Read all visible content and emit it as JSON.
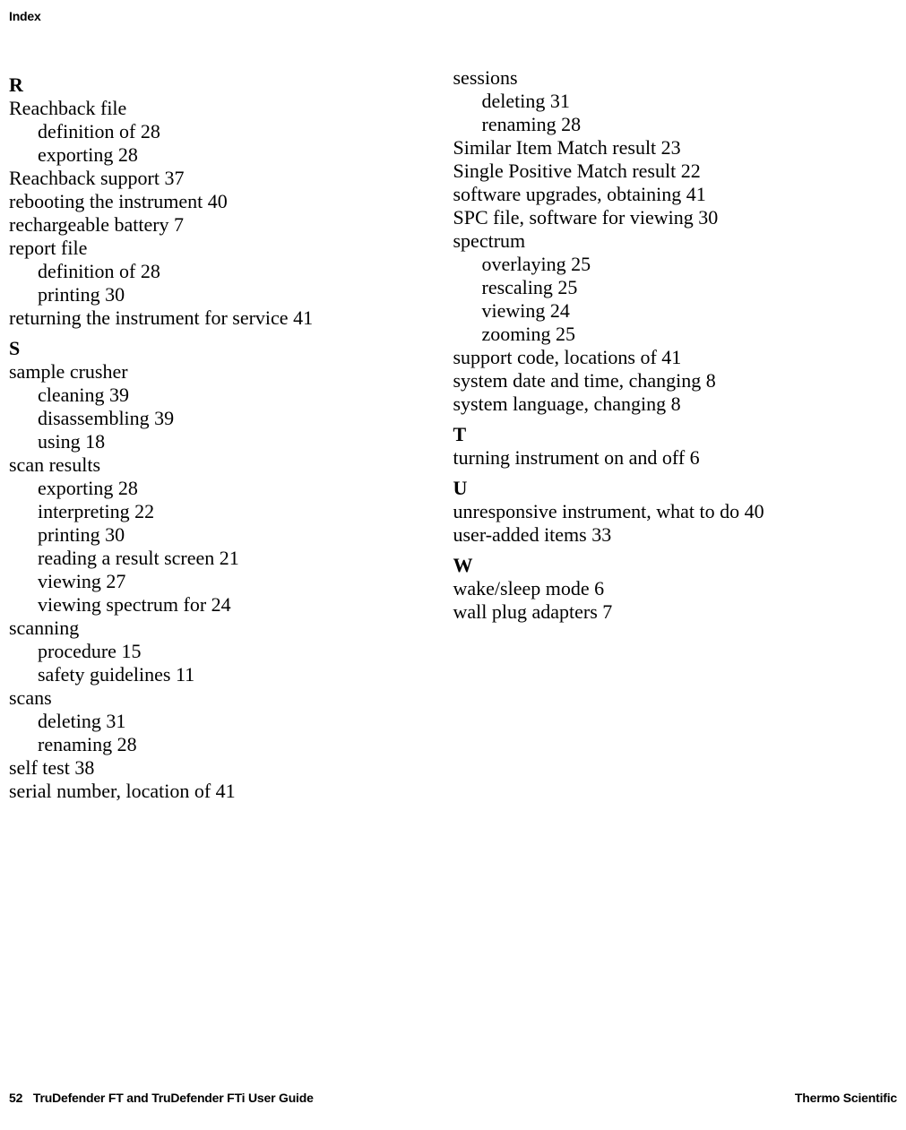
{
  "header": "Index",
  "footer": {
    "page_num": "52",
    "guide_title": "TruDefender FT and TruDefender FTi User Guide",
    "brand": "Thermo Scientific"
  },
  "left_column": [
    {
      "type": "letter",
      "text": "R"
    },
    {
      "type": "entry",
      "text": "Reachback file"
    },
    {
      "type": "sub",
      "text": "definition of 28"
    },
    {
      "type": "sub",
      "text": "exporting 28"
    },
    {
      "type": "entry",
      "text": "Reachback support 37"
    },
    {
      "type": "entry",
      "text": "rebooting the instrument 40"
    },
    {
      "type": "entry",
      "text": "rechargeable battery 7"
    },
    {
      "type": "entry",
      "text": "report file"
    },
    {
      "type": "sub",
      "text": "definition of 28"
    },
    {
      "type": "sub",
      "text": "printing 30"
    },
    {
      "type": "entry",
      "text": "returning the instrument for service 41"
    },
    {
      "type": "letter",
      "text": "S"
    },
    {
      "type": "entry",
      "text": "sample crusher"
    },
    {
      "type": "sub",
      "text": "cleaning 39"
    },
    {
      "type": "sub",
      "text": "disassembling 39"
    },
    {
      "type": "sub",
      "text": "using 18"
    },
    {
      "type": "entry",
      "text": "scan results"
    },
    {
      "type": "sub",
      "text": "exporting 28"
    },
    {
      "type": "sub",
      "text": "interpreting 22"
    },
    {
      "type": "sub",
      "text": "printing 30"
    },
    {
      "type": "sub",
      "text": "reading a result screen 21"
    },
    {
      "type": "sub",
      "text": "viewing 27"
    },
    {
      "type": "sub",
      "text": "viewing spectrum for 24"
    },
    {
      "type": "entry",
      "text": "scanning"
    },
    {
      "type": "sub",
      "text": "procedure 15"
    },
    {
      "type": "sub",
      "text": "safety guidelines 11"
    },
    {
      "type": "entry",
      "text": "scans"
    },
    {
      "type": "sub",
      "text": "deleting 31"
    },
    {
      "type": "sub",
      "text": "renaming 28"
    },
    {
      "type": "entry",
      "text": "self test 38"
    },
    {
      "type": "entry",
      "text": "serial number, location of 41"
    }
  ],
  "right_column": [
    {
      "type": "entry",
      "text": "sessions"
    },
    {
      "type": "sub",
      "text": "deleting 31"
    },
    {
      "type": "sub",
      "text": "renaming 28"
    },
    {
      "type": "entry",
      "text": "Similar Item Match result 23"
    },
    {
      "type": "entry",
      "text": "Single Positive Match result 22"
    },
    {
      "type": "entry",
      "text": "software upgrades, obtaining 41"
    },
    {
      "type": "entry",
      "text": "SPC file, software for viewing 30"
    },
    {
      "type": "entry",
      "text": "spectrum"
    },
    {
      "type": "sub",
      "text": "overlaying 25"
    },
    {
      "type": "sub",
      "text": "rescaling 25"
    },
    {
      "type": "sub",
      "text": "viewing 24"
    },
    {
      "type": "sub",
      "text": "zooming 25"
    },
    {
      "type": "entry",
      "text": "support code, locations of 41"
    },
    {
      "type": "entry",
      "text": "system date and time, changing 8"
    },
    {
      "type": "entry",
      "text": "system language, changing 8"
    },
    {
      "type": "letter",
      "text": "T"
    },
    {
      "type": "entry",
      "text": "turning instrument on and off 6"
    },
    {
      "type": "letter",
      "text": "U"
    },
    {
      "type": "entry",
      "text": "unresponsive instrument, what to do 40"
    },
    {
      "type": "entry",
      "text": "user-added items 33"
    },
    {
      "type": "letter",
      "text": "W"
    },
    {
      "type": "entry",
      "text": "wake/sleep mode 6"
    },
    {
      "type": "entry",
      "text": "wall plug adapters 7"
    }
  ]
}
